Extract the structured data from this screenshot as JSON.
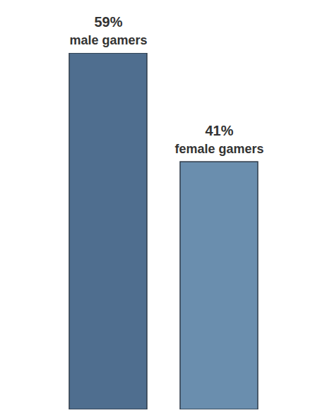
{
  "chart_data": {
    "type": "bar",
    "categories": [
      "male gamers",
      "female gamers"
    ],
    "values": [
      59,
      41
    ],
    "value_labels": [
      "59%",
      "41%"
    ],
    "data_labels": true,
    "tick_labels": false,
    "colors": [
      "#4f6e8f",
      "#6a8eae"
    ]
  }
}
